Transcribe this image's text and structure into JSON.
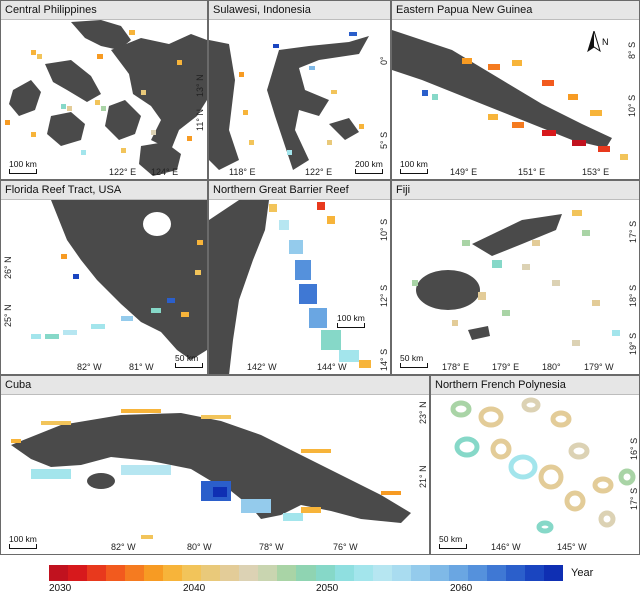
{
  "panels": {
    "philippines": {
      "title": "Central Philippines",
      "ticks_x": [
        "122° E",
        "124° E"
      ],
      "ticks_y": [
        "13° N",
        "11° N"
      ],
      "scale": "100 km"
    },
    "sulawesi": {
      "title": "Sulawesi, Indonesia",
      "ticks_x": [
        "118° E",
        "122° E"
      ],
      "ticks_y": [
        "0°",
        "5° S"
      ],
      "scale": "200 km"
    },
    "png": {
      "title": "Eastern Papua New Guinea",
      "ticks_x": [
        "149° E",
        "151° E",
        "153° E"
      ],
      "ticks_y": [
        "8° S",
        "10° S"
      ],
      "scale": "100 km",
      "north_label": "N"
    },
    "florida": {
      "title": "Florida Reef Tract, USA",
      "ticks_x": [
        "82° W",
        "81° W"
      ],
      "ticks_y": [
        "26° N",
        "25° N"
      ],
      "scale": "50 km"
    },
    "gbr": {
      "title": "Northern Great Barrier Reef",
      "ticks_x": [
        "142° W",
        "144° W"
      ],
      "ticks_y": [
        "10° S",
        "12° S",
        "14° S"
      ],
      "scale": "100 km"
    },
    "fiji": {
      "title": "Fiji",
      "ticks_x": [
        "178° E",
        "179° E",
        "180°",
        "179° W"
      ],
      "ticks_y": [
        "17° S",
        "18° S",
        "19° S"
      ],
      "scale": "50 km"
    },
    "cuba": {
      "title": "Cuba",
      "ticks_x": [
        "82° W",
        "80° W",
        "78° W",
        "76° W"
      ],
      "ticks_y": [
        "23° N",
        "21° N"
      ],
      "scale": "100 km"
    },
    "polynesia": {
      "title": "Northern French Polynesia",
      "ticks_x": [
        "146° W",
        "145° W"
      ],
      "ticks_y": [
        "16° S",
        "17° S"
      ],
      "scale": "50 km"
    }
  },
  "legend": {
    "title": "Year",
    "labels": [
      "2030",
      "2040",
      "2050",
      "2060"
    ],
    "colors": [
      "#c1121f",
      "#d7191c",
      "#e8391d",
      "#f25a1e",
      "#f57b20",
      "#f79b23",
      "#f7b43a",
      "#f2c45a",
      "#e9c97a",
      "#e3cc98",
      "#dcd2b4",
      "#c9d5b0",
      "#a9d4a6",
      "#8fd4b2",
      "#86d8c8",
      "#8fdfe0",
      "#a3e5ec",
      "#b6e6f1",
      "#a9dcf0",
      "#94cbec",
      "#7fb9e7",
      "#6aa6e2",
      "#5591dc",
      "#3f78d4",
      "#2b5fcb",
      "#1a45c0",
      "#0f2fb3"
    ],
    "palette": {
      "land": "#4a4a4a",
      "panel_title_bg": "#e6e6e6",
      "border": "#6a6a6a"
    }
  }
}
